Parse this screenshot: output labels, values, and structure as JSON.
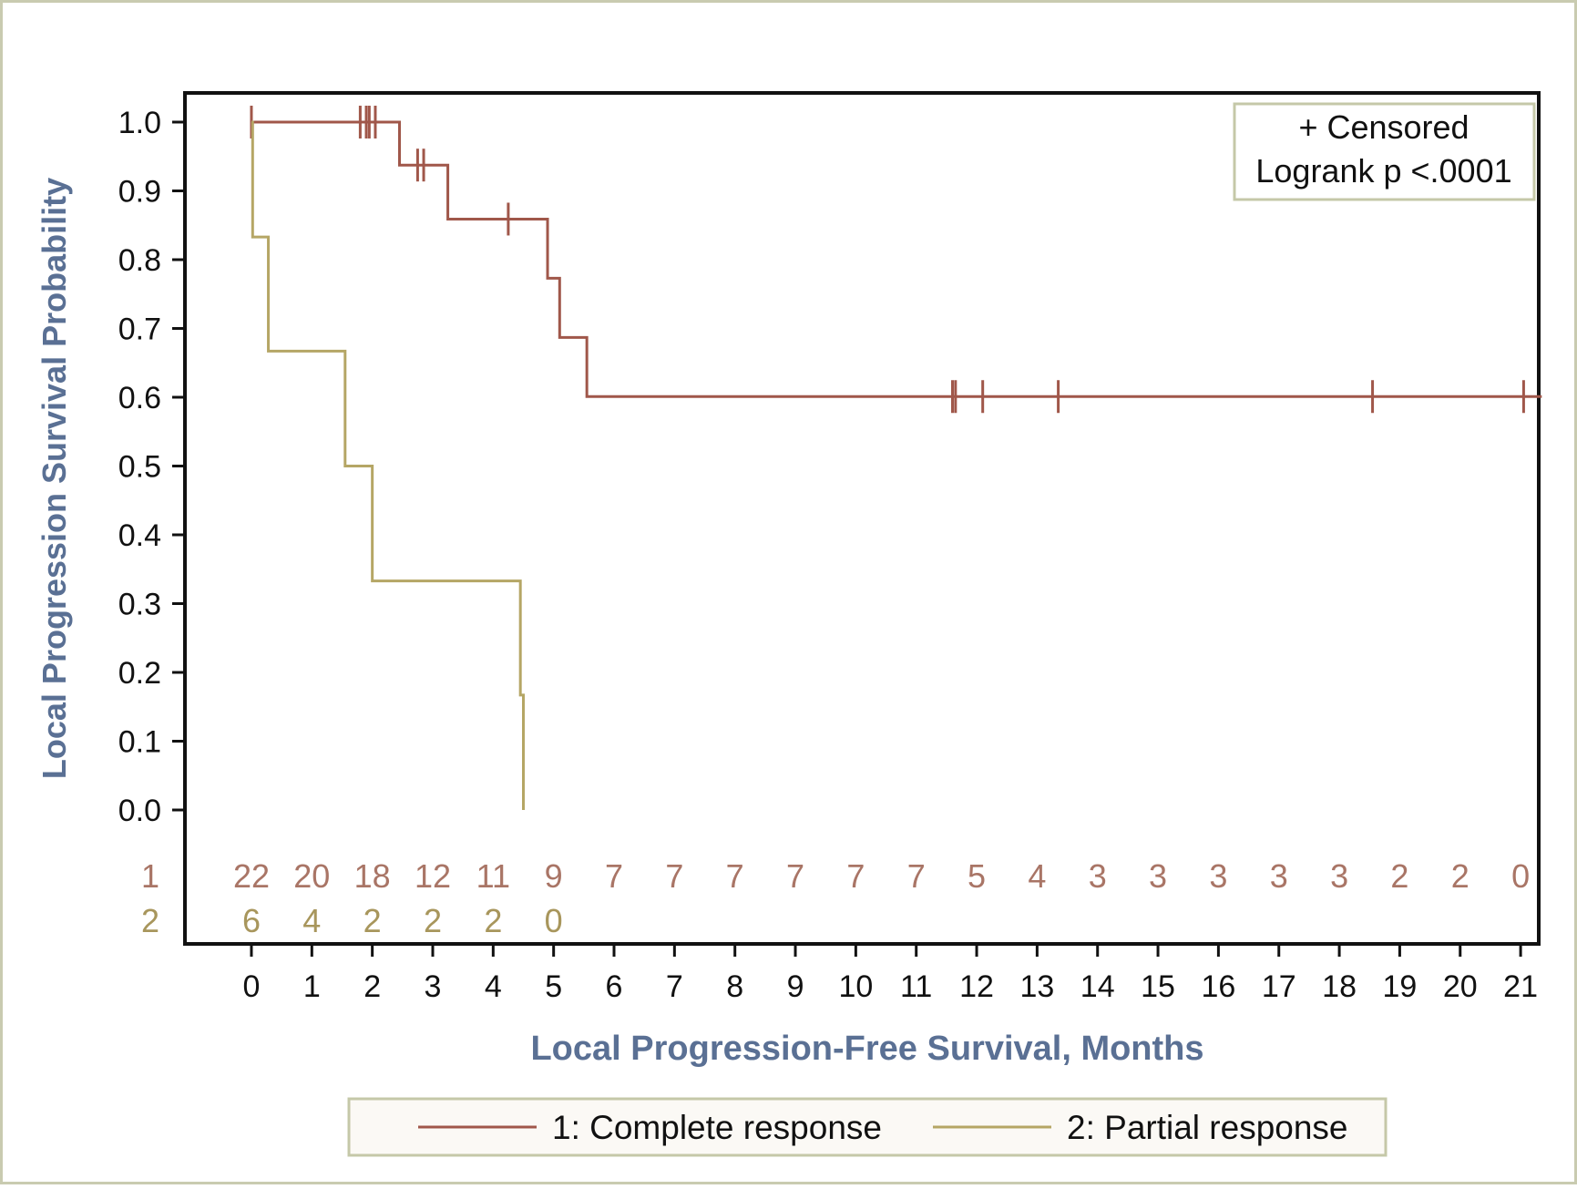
{
  "chart_data": {
    "type": "line",
    "subtype": "kaplan-meier step curve",
    "xlabel": "Local Progression-Free Survival, Months",
    "ylabel": "Local Progression Survival Probability",
    "xlim": [
      -1.1,
      21.3
    ],
    "ylim": [
      0,
      1
    ],
    "x_ticks": [
      0,
      1,
      2,
      3,
      4,
      5,
      6,
      7,
      8,
      9,
      10,
      11,
      12,
      13,
      14,
      15,
      16,
      17,
      18,
      19,
      20,
      21
    ],
    "y_ticks": [
      "0.0",
      "0.1",
      "0.2",
      "0.3",
      "0.4",
      "0.5",
      "0.6",
      "0.7",
      "0.8",
      "0.9",
      "1.0"
    ],
    "inset_legend": {
      "censored": "+ Censored",
      "logrank": "Logrank p <.0001"
    },
    "series": [
      {
        "name": "1: Complete response",
        "group_label": "1",
        "color": "#a0574a",
        "steps": [
          [
            0.0,
            1.0
          ],
          [
            2.45,
            0.9375
          ],
          [
            3.25,
            0.859
          ],
          [
            4.9,
            0.773
          ],
          [
            5.1,
            0.687
          ],
          [
            5.55,
            0.601
          ],
          [
            21.35,
            0.601
          ]
        ],
        "censored": [
          [
            0.0,
            1.0
          ],
          [
            1.8,
            1.0
          ],
          [
            1.9,
            1.0
          ],
          [
            1.95,
            1.0
          ],
          [
            2.05,
            1.0
          ],
          [
            2.75,
            0.9375
          ],
          [
            2.85,
            0.9375
          ],
          [
            4.25,
            0.859
          ],
          [
            11.6,
            0.601
          ],
          [
            11.65,
            0.601
          ],
          [
            12.1,
            0.601
          ],
          [
            13.35,
            0.601
          ],
          [
            18.55,
            0.601
          ],
          [
            21.05,
            0.601
          ]
        ],
        "at_risk": [
          "22",
          "20",
          "18",
          "12",
          "11",
          "9",
          "7",
          "7",
          "7",
          "7",
          "7",
          "7",
          "5",
          "4",
          "3",
          "3",
          "3",
          "3",
          "3",
          "2",
          "2",
          "0"
        ],
        "at_risk_color": "#a97566"
      },
      {
        "name": "2: Partial response",
        "group_label": "2",
        "color": "#b5a665",
        "steps": [
          [
            0.0,
            1.0
          ],
          [
            0.02,
            0.833
          ],
          [
            0.28,
            0.667
          ],
          [
            1.55,
            0.5
          ],
          [
            2.0,
            0.333
          ],
          [
            4.45,
            0.167
          ],
          [
            4.5,
            0.0
          ]
        ],
        "censored": [],
        "at_risk": [
          "6",
          "4",
          "2",
          "2",
          "2",
          "0"
        ],
        "at_risk_color": "#a8965c"
      }
    ],
    "legend_position": "bottom"
  }
}
